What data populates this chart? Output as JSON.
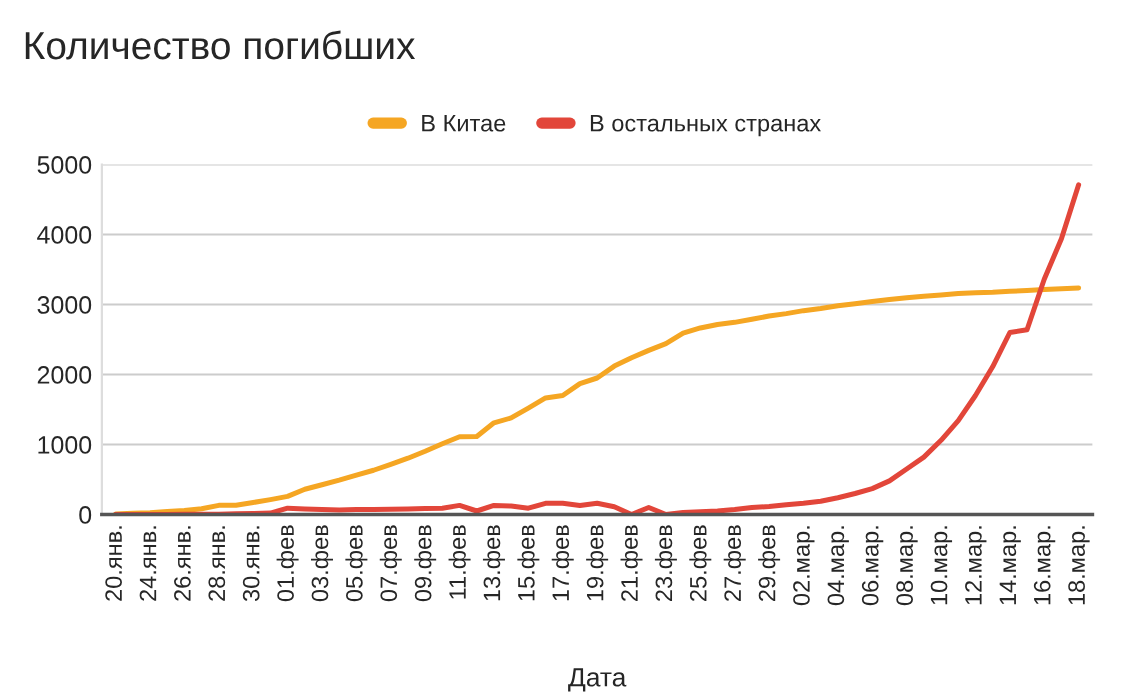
{
  "chart_data": {
    "type": "line",
    "title": "Количество погибших",
    "xlabel": "Дата",
    "categories": [
      "20.янв.",
      null,
      "24.янв.",
      null,
      "26.янв.",
      null,
      "28.янв.",
      null,
      "30.янв.",
      null,
      "01.фев",
      null,
      "03.фев",
      null,
      "05.фев",
      null,
      "07.фев",
      null,
      "09.фев",
      null,
      "11.фев",
      null,
      "13.фев",
      null,
      "15.фев",
      null,
      "17.фев",
      null,
      "19.фев",
      null,
      "21.фев",
      null,
      "23.фев",
      null,
      "25.фев",
      null,
      "27.фев",
      null,
      "29.фев",
      null,
      "02.мар.",
      null,
      "04.мар.",
      null,
      "06.мар.",
      null,
      "08.мар.",
      null,
      "10.мар.",
      null,
      "12.мар.",
      null,
      "14.мар.",
      null,
      "16.мар.",
      null,
      "18.мар."
    ],
    "series": [
      {
        "name": "В Китае",
        "color": "#f5a623",
        "values": [
          6,
          17,
          26,
          42,
          56,
          82,
          131,
          133,
          171,
          213,
          259,
          361,
          425,
          490,
          562,
          632,
          717,
          804,
          904,
          1011,
          1111,
          1115,
          1310,
          1380,
          1520,
          1665,
          1700,
          1870,
          1950,
          2120,
          2240,
          2345,
          2440,
          2590,
          2665,
          2715,
          2745,
          2790,
          2835,
          2870,
          2912,
          2943,
          2981,
          3012,
          3042,
          3070,
          3097,
          3119,
          3136,
          3158,
          3169,
          3176,
          3189,
          3199,
          3213,
          3226,
          3237
        ]
      },
      {
        "name": "В остальных странах",
        "color": "#e2463a",
        "values": [
          0,
          0,
          0,
          1,
          2,
          3,
          5,
          10,
          15,
          20,
          90,
          80,
          70,
          65,
          70,
          70,
          75,
          80,
          85,
          90,
          130,
          50,
          130,
          120,
          90,
          160,
          160,
          130,
          160,
          110,
          0,
          100,
          0,
          30,
          40,
          50,
          70,
          100,
          115,
          140,
          160,
          190,
          240,
          300,
          370,
          480,
          650,
          820,
          1060,
          1340,
          1700,
          2110,
          2600,
          2640,
          3360,
          3940,
          4710
        ]
      }
    ],
    "ylim": [
      0,
      5000
    ],
    "yticks": [
      0,
      1000,
      2000,
      3000,
      4000,
      5000
    ],
    "grid": "y",
    "legend": "top"
  }
}
